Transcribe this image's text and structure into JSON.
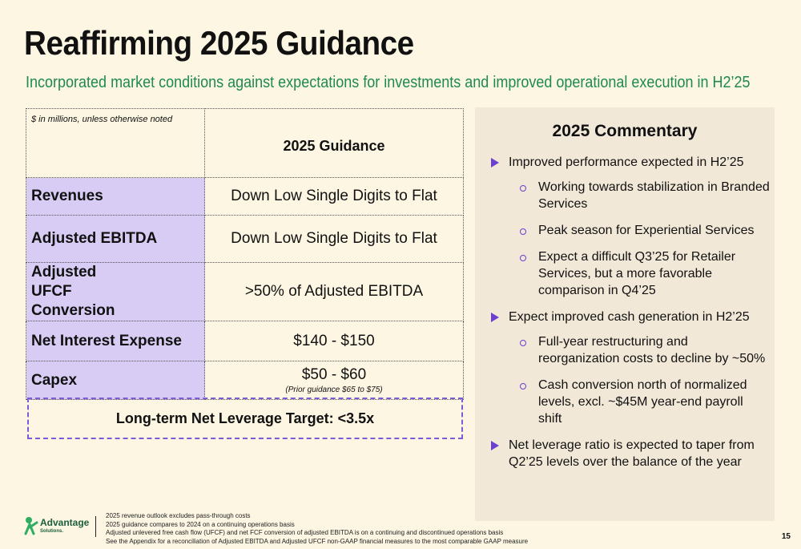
{
  "header": {
    "title": "Reaffirming 2025 Guidance",
    "subtitle": "Incorporated market conditions against expectations for investments and improved operational execution in H2’25"
  },
  "guidance_table": {
    "note": "$ in millions, unless otherwise noted",
    "column_header": "2025 Guidance",
    "rows": [
      {
        "label": "Revenues",
        "value": "Down Low Single Digits to Flat"
      },
      {
        "label": "Adjusted EBITDA",
        "value": "Down Low Single Digits to Flat"
      },
      {
        "label": "Adjusted UFCF Conversion",
        "value": ">50% of Adjusted EBITDA"
      },
      {
        "label": "Net Interest Expense",
        "value": "$140 - $150"
      },
      {
        "label": "Capex",
        "value": "$50 - $60",
        "subnote": "(Prior guidance $65 to $75)"
      }
    ],
    "leverage_target": "Long-term Net Leverage Target: <3.5x"
  },
  "commentary": {
    "title": "2025 Commentary",
    "items": [
      {
        "text": "Improved performance expected in H2’25",
        "sub": [
          "Working towards stabilization in Branded Services",
          "Peak season for Experiential Services",
          "Expect a difficult Q3’25 for Retailer Services, but a more favorable comparison in Q4’25"
        ]
      },
      {
        "text": "Expect improved cash generation in H2’25",
        "sub": [
          "Full-year restructuring and reorganization costs to decline by ~50%",
          "Cash conversion north of normalized levels, excl. ~$45M year-end payroll shift"
        ]
      },
      {
        "text": "Net leverage ratio is expected to taper from Q2’25 levels over the balance of the year",
        "sub": []
      }
    ]
  },
  "footer": {
    "logo_name": "Advantage",
    "logo_sub": "Solutions.",
    "notes": [
      "2025 revenue outlook excludes pass-through costs",
      "2025 guidance compares to 2024 on a continuing operations basis",
      "Adjusted unlevered free cash flow (UFCF)  and net FCF conversion of adjusted EBITDA is on a continuing and discontinued operations basis",
      "See the Appendix for a reconciliation of Adjusted EBITDA and Adjusted UFCF non-GAAP financial measures to the most comparable GAAP measure"
    ],
    "page_number": "15"
  },
  "colors": {
    "background": "#fdf6e3",
    "accent_green": "#1e8a4e",
    "label_purple": "#d9ccf4",
    "bullet_purple": "#6a3fd1",
    "panel": "#f2e8d8"
  }
}
